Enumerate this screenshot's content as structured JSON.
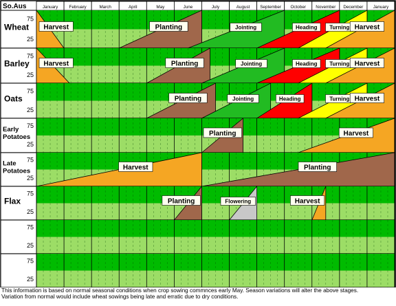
{
  "chart_data": {
    "type": "timeline",
    "region_label": "So.Aus",
    "months": [
      "January",
      "February",
      "March",
      "April",
      "May",
      "June",
      "July",
      "August",
      "September",
      "October",
      "November",
      "December",
      "January"
    ],
    "y_ticks": [
      "75",
      "25"
    ],
    "rows": [
      {
        "crop": "Wheat",
        "stages": [
          {
            "label": "Harvest",
            "shape": "fall",
            "color": "#F5A623",
            "x0": 0,
            "x1": 1.0
          },
          {
            "label": "Planting",
            "shape": "rise",
            "color": "#A0674B",
            "x0": 3.0,
            "x1": 6.0
          },
          {
            "label": "Jointing",
            "shape": "rise",
            "color": "#22BB22",
            "x0": 5.5,
            "x1": 9.0
          },
          {
            "label": "Heading",
            "shape": "rise",
            "color": "#FF0000",
            "x0": 8.0,
            "x1": 11.0
          },
          {
            "label": "Turning",
            "shape": "rise",
            "color": "#FFFF00",
            "x0": 9.5,
            "x1": 12.0
          },
          {
            "label": "Harvest",
            "shape": "rise",
            "color": "#F5A623",
            "x0": 10.5,
            "x1": 13.0
          }
        ]
      },
      {
        "crop": "Barley",
        "stages": [
          {
            "label": "Harvest",
            "shape": "fall",
            "color": "#F5A623",
            "x0": 0,
            "x1": 1.2
          },
          {
            "label": "Planting",
            "shape": "rise",
            "color": "#A0674B",
            "x0": 4.0,
            "x1": 6.3
          },
          {
            "label": "Jointing",
            "shape": "rise",
            "color": "#22BB22",
            "x0": 6.0,
            "x1": 9.0
          },
          {
            "label": "Heading",
            "shape": "rise",
            "color": "#FF0000",
            "x0": 8.0,
            "x1": 11.0
          },
          {
            "label": "Turning",
            "shape": "rise",
            "color": "#FFFF00",
            "x0": 9.5,
            "x1": 12.0
          },
          {
            "label": "Harvest",
            "shape": "rise",
            "color": "#F5A623",
            "x0": 10.5,
            "x1": 13.0
          }
        ]
      },
      {
        "crop": "Oats",
        "stages": [
          {
            "label": "Planting",
            "shape": "rise",
            "color": "#A0674B",
            "x0": 4.0,
            "x1": 6.5
          },
          {
            "label": "Jointing",
            "shape": "rise",
            "color": "#22BB22",
            "x0": 6.0,
            "x1": 8.5
          },
          {
            "label": "Heading",
            "shape": "rise",
            "color": "#FF0000",
            "x0": 8.0,
            "x1": 10.0
          },
          {
            "label": "Turning",
            "shape": "rise",
            "color": "#FFFF00",
            "x0": 9.5,
            "x1": 12.0
          },
          {
            "label": "Harvest",
            "shape": "rise",
            "color": "#F5A623",
            "x0": 10.5,
            "x1": 13.0
          }
        ]
      },
      {
        "crop": "Early Potatoes",
        "stages": [
          {
            "label": "Planting",
            "shape": "rise",
            "color": "#A0674B",
            "x0": 6.0,
            "x1": 7.5
          },
          {
            "label": "Harvest",
            "shape": "rise",
            "color": "#F5A623",
            "x0": 9.5,
            "x1": 13.0
          }
        ]
      },
      {
        "crop": "Late Potatoes",
        "stages": [
          {
            "label": "Harvest",
            "shape": "rise",
            "color": "#F5A623",
            "x0": 0,
            "x1": 6.0
          },
          {
            "label": "Planting",
            "shape": "rise",
            "color": "#A0674B",
            "x0": 6.0,
            "x1": 13.0
          }
        ]
      },
      {
        "crop": "Flax",
        "stages": [
          {
            "label": "Planting",
            "shape": "rise",
            "color": "#A0674B",
            "x0": 5.0,
            "x1": 6.0
          },
          {
            "label": "Flowering",
            "shape": "rise",
            "color": "#C8C8C8",
            "x0": 7.0,
            "x1": 8.0
          },
          {
            "label": "Harvest",
            "shape": "rise",
            "color": "#F5A623",
            "x0": 10.0,
            "x1": 10.5
          }
        ]
      },
      {
        "crop": "",
        "stages": []
      },
      {
        "crop": "",
        "stages": []
      }
    ],
    "colors": {
      "grid_top": "#00BB00",
      "grid_bottom": "#9CDD66",
      "wheat_row_bottom": "#9CDD66"
    }
  },
  "footnote": {
    "line1": "This information is based on normal seasonal conditions when crop sowing commnces early May.  Season variations will alter the above stages.",
    "line2": "Variation from normal would include wheat sowings being late and erratic due to dry conditions."
  }
}
